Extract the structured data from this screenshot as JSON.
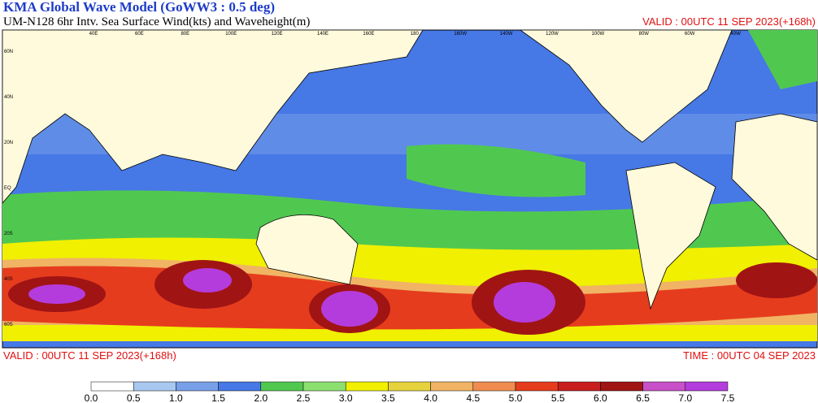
{
  "header": {
    "title": "KMA  Global Wave Model (GoWW3 : 0.5 deg)",
    "subtitle": "UM-N128  6hr Intv. Sea Surface Wind(kts) and Waveheight(m)",
    "valid": "VALID : 00UTC 11 SEP 2023(+168h)"
  },
  "map": {
    "lon_labels": [
      "40E",
      "60E",
      "80E",
      "100E",
      "120E",
      "140E",
      "160E",
      "180",
      "160W",
      "140W",
      "120W",
      "100W",
      "80W",
      "60W",
      "40W"
    ],
    "lat_labels": [
      "60N",
      "40N",
      "20N",
      "EQ",
      "20S",
      "40S",
      "60S"
    ]
  },
  "footer": {
    "valid": "VALID : 00UTC 11 SEP 2023(+168h)",
    "time": "TIME : 00UTC 04 SEP 2023"
  },
  "colorbar": {
    "labels": [
      "0.0",
      "0.5",
      "1.0",
      "1.5",
      "2.0",
      "2.5",
      "3.0",
      "3.5",
      "4.0",
      "4.5",
      "5.0",
      "5.5",
      "6.0",
      "6.5",
      "7.0",
      "7.5"
    ],
    "colors": [
      "#ffffff",
      "#a8c8f0",
      "#78a0e8",
      "#4678e6",
      "#50c850",
      "#8ce070",
      "#f0f000",
      "#e6d23c",
      "#f0b464",
      "#f08c50",
      "#e63c1e",
      "#c81e1e",
      "#a01414",
      "#c850c8",
      "#b43cdc",
      "#8c28e6"
    ]
  }
}
